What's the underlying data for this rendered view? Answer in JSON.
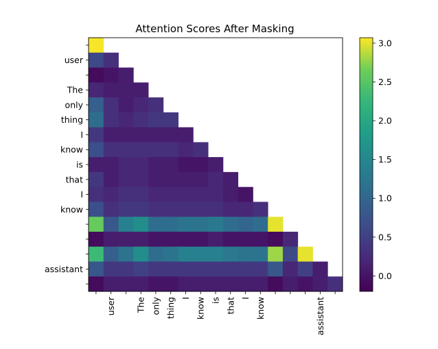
{
  "chart_data": {
    "type": "heatmap",
    "title": "Attention Scores After Masking",
    "xlabel": "",
    "ylabel": "",
    "tokens": [
      "",
      "user",
      "",
      "The",
      "only",
      "thing",
      "I",
      "know",
      "is",
      "that",
      "I",
      "know",
      "",
      "",
      "",
      "assistant",
      ""
    ],
    "colorbar": {
      "range": [
        -0.2,
        3.07
      ],
      "ticks": [
        0.0,
        0.5,
        1.0,
        1.5,
        2.0,
        2.5,
        3.0
      ],
      "tick_labels": [
        "0.0",
        "0.5",
        "1.0",
        "1.5",
        "2.0",
        "2.5",
        "3.0"
      ],
      "colormap": "viridis"
    },
    "mask": "upper triangle masked (causal)",
    "values": [
      [
        3.05
      ],
      [
        0.6,
        0.3
      ],
      [
        -0.1,
        0.0,
        0.1
      ],
      [
        0.2,
        0.1,
        0.1,
        0.1
      ],
      [
        0.9,
        0.3,
        0.1,
        0.2,
        0.3
      ],
      [
        1.1,
        0.3,
        0.2,
        0.3,
        0.4,
        0.4
      ],
      [
        0.4,
        0.1,
        0.1,
        0.1,
        0.1,
        0.1,
        0.1
      ],
      [
        0.7,
        0.3,
        0.3,
        0.3,
        0.3,
        0.3,
        0.2,
        0.3
      ],
      [
        0.1,
        0.1,
        0.2,
        0.2,
        0.1,
        0.1,
        0.0,
        0.0,
        0.1
      ],
      [
        0.4,
        0.1,
        0.2,
        0.2,
        0.1,
        0.1,
        0.1,
        0.1,
        0.2,
        0.1
      ],
      [
        0.3,
        0.2,
        0.3,
        0.3,
        0.2,
        0.2,
        0.2,
        0.2,
        0.2,
        0.1,
        0.0
      ],
      [
        0.7,
        0.3,
        0.4,
        0.4,
        0.3,
        0.3,
        0.3,
        0.3,
        0.3,
        0.2,
        0.2,
        0.3
      ],
      [
        2.6,
        0.8,
        1.4,
        1.6,
        1.1,
        1.1,
        1.2,
        1.2,
        1.3,
        1.1,
        1.0,
        1.1,
        3.0
      ],
      [
        -0.1,
        0.1,
        0.1,
        0.1,
        0.0,
        0.0,
        0.0,
        0.0,
        0.1,
        0.0,
        0.0,
        0.0,
        -0.1,
        0.2
      ],
      [
        2.3,
        0.9,
        1.2,
        1.6,
        1.1,
        1.2,
        1.4,
        1.4,
        1.4,
        1.3,
        1.2,
        1.2,
        2.8,
        0.6,
        3.0
      ],
      [
        0.8,
        0.4,
        0.4,
        0.5,
        0.4,
        0.4,
        0.4,
        0.4,
        0.4,
        0.4,
        0.4,
        0.4,
        0.8,
        0.2,
        0.5,
        0.1
      ],
      [
        -0.1,
        0.1,
        0.1,
        0.1,
        0.0,
        0.0,
        0.1,
        0.1,
        0.1,
        0.1,
        0.1,
        0.1,
        -0.1,
        0.1,
        0.0,
        0.1,
        0.3
      ]
    ]
  }
}
